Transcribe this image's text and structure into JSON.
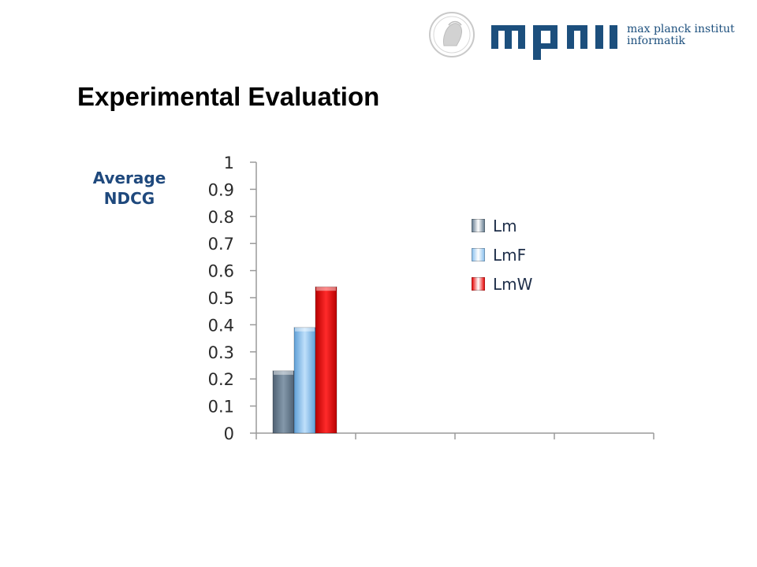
{
  "header": {
    "title": "Experimental Evaluation",
    "logo": {
      "icon": "minerva-seal-icon",
      "mark": "mpii-wordmark",
      "line1": "max planck institut",
      "line2": "informatik",
      "color": "#1c4f7d"
    }
  },
  "chart_data": {
    "type": "bar",
    "ylabel": "Average NDCG",
    "xlabel": "",
    "ylim": [
      0,
      1
    ],
    "yticks": [
      "0",
      "0.1",
      "0.2",
      "0.3",
      "0.4",
      "0.5",
      "0.6",
      "0.7",
      "0.8",
      "0.9",
      "1"
    ],
    "categories": [
      "",
      "",
      "",
      ""
    ],
    "series": [
      {
        "name": "Lm",
        "color": "#6d8396",
        "values": [
          0.23,
          null,
          null,
          null
        ]
      },
      {
        "name": "LmF",
        "color": "#8fc3ee",
        "values": [
          0.39,
          null,
          null,
          null
        ]
      },
      {
        "name": "LmW",
        "color": "#e81010",
        "values": [
          0.54,
          null,
          null,
          null
        ]
      }
    ],
    "grid": false,
    "legend_position": "right"
  }
}
